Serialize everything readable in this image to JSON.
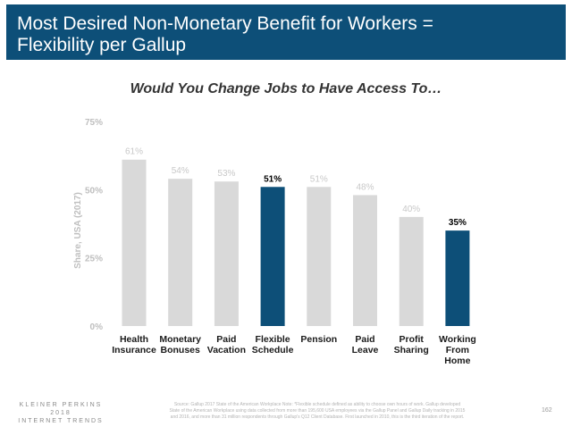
{
  "header": {
    "title_line1": "Most Desired Non-Monetary Benefit for Workers =",
    "title_line2": "Flexibility per Gallup"
  },
  "chart_data": {
    "type": "bar",
    "title": "Would You Change Jobs to Have Access To…",
    "ylabel": "Share, USA (2017)",
    "xlabel": "",
    "ylim": [
      0,
      75
    ],
    "yticks": [
      "0%",
      "25%",
      "50%",
      "75%"
    ],
    "grid": false,
    "categories": [
      [
        "Health",
        "Insurance"
      ],
      [
        "Monetary",
        "Bonuses"
      ],
      [
        "Paid",
        "Vacation"
      ],
      [
        "Flexible",
        "Schedule"
      ],
      [
        "Pension"
      ],
      [
        "Paid",
        "Leave"
      ],
      [
        "Profit",
        "Sharing"
      ],
      [
        "Working",
        "From",
        "Home"
      ]
    ],
    "values": [
      61,
      54,
      53,
      51,
      51,
      48,
      40,
      35
    ],
    "value_labels": [
      "61%",
      "54%",
      "53%",
      "51%",
      "51%",
      "48%",
      "40%",
      "35%"
    ],
    "highlighted": [
      false,
      false,
      false,
      true,
      false,
      false,
      false,
      true
    ],
    "colors": {
      "default_bar": "#d9d9d9",
      "highlight_bar": "#0d4f78",
      "default_label": "#c8c8c8",
      "highlight_label": "#000000",
      "category_label": "#1a1a1a",
      "axis_text": "#bfbfbf"
    }
  },
  "footer": {
    "brand_line1": "KLEINER PERKINS",
    "brand_line2": "2018",
    "brand_line3": "INTERNET TRENDS",
    "source_line1": "Source: Gallup 2017 State of the American Workplace Note: *Flexible schedule defined as ability to choose own hours of work. Gallup developed",
    "source_line2": "State of the American Workplace using data collected from more than 195,600 USA employees via the Gallup Panel and Gallup Daily tracking in 2015",
    "source_line3": "and 2016, and more than 31 million respondents through Gallup's Q12 Client Database. First launched in 2010, this is the third iteration of the report.",
    "page_number": "162"
  }
}
